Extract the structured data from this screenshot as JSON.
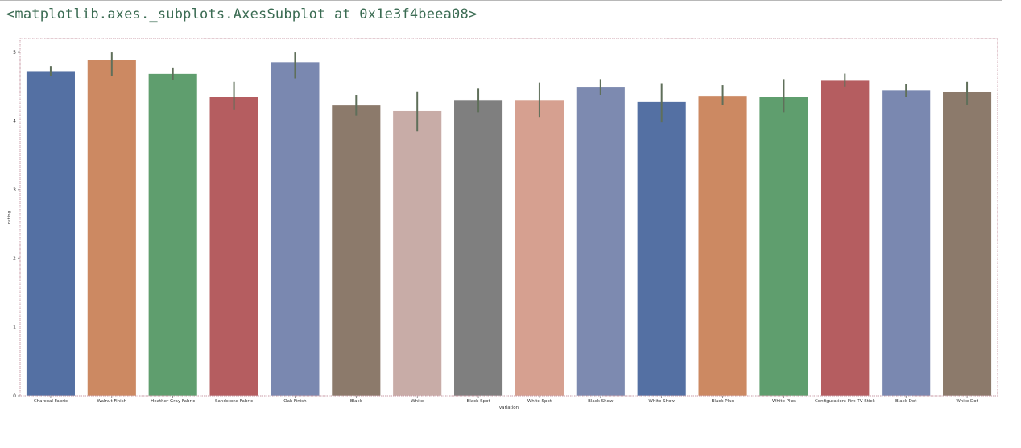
{
  "output_cell": {
    "text": "<matplotlib.axes._subplots.AxesSubplot at 0x1e3f4beea08>"
  },
  "chart_data": {
    "type": "bar",
    "title": "",
    "xlabel": "variation",
    "ylabel": "rating",
    "ylim": [
      0,
      5.2
    ],
    "yticks": [
      "0",
      "1",
      "2",
      "3",
      "4",
      "5"
    ],
    "grid": false,
    "legend": "none",
    "categories": [
      "Charcoal Fabric",
      "Walnut Finish",
      "Heather Gray Fabric",
      "Sandstone Fabric",
      "Oak Finish",
      "Black",
      "White",
      "Black  Spot",
      "White  Spot",
      "Black  Show",
      "White  Show",
      "Black  Plus",
      "White  Plus",
      "Configuration: Fire TV Stick",
      "Black  Dot",
      "White  Dot"
    ],
    "values": [
      4.73,
      4.89,
      4.69,
      4.36,
      4.86,
      4.23,
      4.15,
      4.31,
      4.31,
      4.5,
      4.28,
      4.37,
      4.36,
      4.59,
      4.45,
      4.42
    ],
    "error_low": [
      4.65,
      4.66,
      4.6,
      4.16,
      4.62,
      4.08,
      3.85,
      4.13,
      4.05,
      4.38,
      3.98,
      4.23,
      4.13,
      4.5,
      4.35,
      4.24
    ],
    "error_high": [
      4.8,
      5.0,
      4.78,
      4.57,
      5.0,
      4.38,
      4.43,
      4.47,
      4.56,
      4.61,
      4.55,
      4.52,
      4.61,
      4.69,
      4.54,
      4.57
    ],
    "colors": [
      "#5470a3",
      "#cc8962",
      "#5f9e6e",
      "#b55d60",
      "#7a88b0",
      "#8c7a6b",
      "#c8aca7",
      "#7f7f7f",
      "#d6a090",
      "#7d8ab0",
      "#5470a3",
      "#cc8962",
      "#5f9e6e",
      "#b55d60",
      "#7a88b0",
      "#8c7a6b"
    ],
    "errorbar_color": "#5f6f5a"
  }
}
